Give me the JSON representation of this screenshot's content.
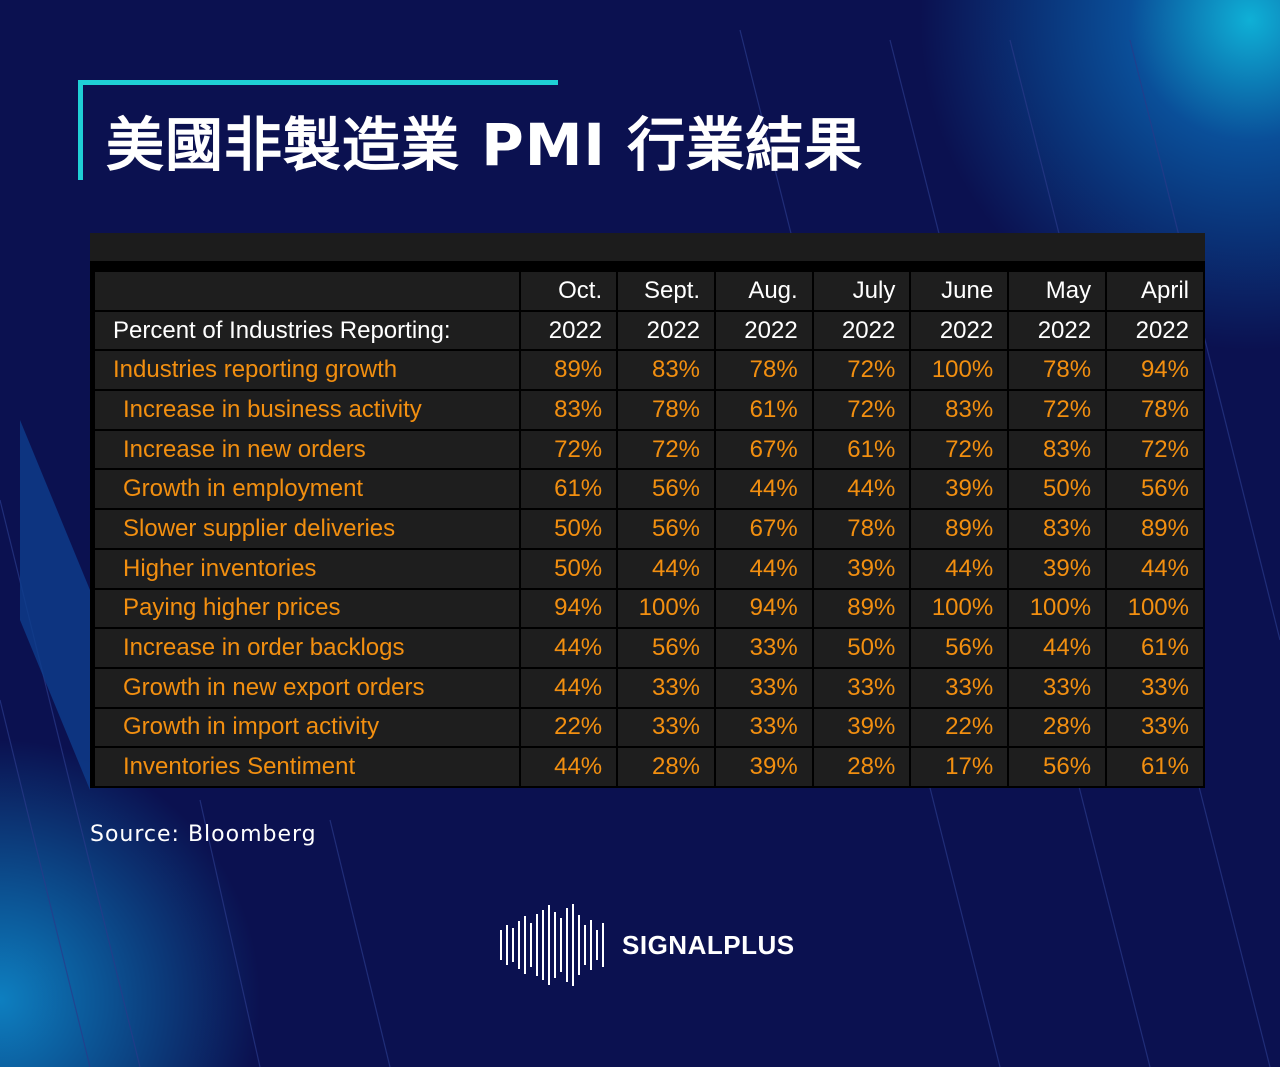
{
  "title": "美國非製造業 PMI 行業結果",
  "source": "Source:  Bloomberg",
  "brand": "SIGNALPLUS",
  "colors": {
    "background": "#0b1150",
    "accent": "#1fd0d6",
    "value_text": "#f28f10",
    "table_bg": "#1e1e1e"
  },
  "chart_data": {
    "type": "table",
    "header_months": [
      "Oct.",
      "Sept.",
      "Aug.",
      "July",
      "June",
      "May",
      "April"
    ],
    "header_years": [
      "2022",
      "2022",
      "2022",
      "2022",
      "2022",
      "2022",
      "2022"
    ],
    "row_header_label": "Percent of Industries Reporting:",
    "rows": [
      {
        "label": "Industries reporting growth",
        "values": [
          "89%",
          "83%",
          "78%",
          "72%",
          "100%",
          "78%",
          "94%"
        ]
      },
      {
        "label": "Increase in business activity",
        "values": [
          "83%",
          "78%",
          "61%",
          "72%",
          "83%",
          "72%",
          "78%"
        ]
      },
      {
        "label": "Increase in new orders",
        "values": [
          "72%",
          "72%",
          "67%",
          "61%",
          "72%",
          "83%",
          "72%"
        ]
      },
      {
        "label": "Growth in employment",
        "values": [
          "61%",
          "56%",
          "44%",
          "44%",
          "39%",
          "50%",
          "56%"
        ]
      },
      {
        "label": "Slower supplier deliveries",
        "values": [
          "50%",
          "56%",
          "67%",
          "78%",
          "89%",
          "83%",
          "89%"
        ]
      },
      {
        "label": "Higher inventories",
        "values": [
          "50%",
          "44%",
          "44%",
          "39%",
          "44%",
          "39%",
          "44%"
        ]
      },
      {
        "label": "Paying higher prices",
        "values": [
          "94%",
          "100%",
          "94%",
          "89%",
          "100%",
          "100%",
          "100%"
        ]
      },
      {
        "label": "Increase in order backlogs",
        "values": [
          "44%",
          "56%",
          "33%",
          "50%",
          "56%",
          "44%",
          "61%"
        ]
      },
      {
        "label": "Growth in new export orders",
        "values": [
          "44%",
          "33%",
          "33%",
          "33%",
          "33%",
          "33%",
          "33%"
        ]
      },
      {
        "label": "Growth in import activity",
        "values": [
          "22%",
          "33%",
          "33%",
          "39%",
          "22%",
          "28%",
          "33%"
        ]
      },
      {
        "label": "Inventories Sentiment",
        "values": [
          "44%",
          "28%",
          "39%",
          "28%",
          "17%",
          "56%",
          "61%"
        ]
      }
    ]
  }
}
